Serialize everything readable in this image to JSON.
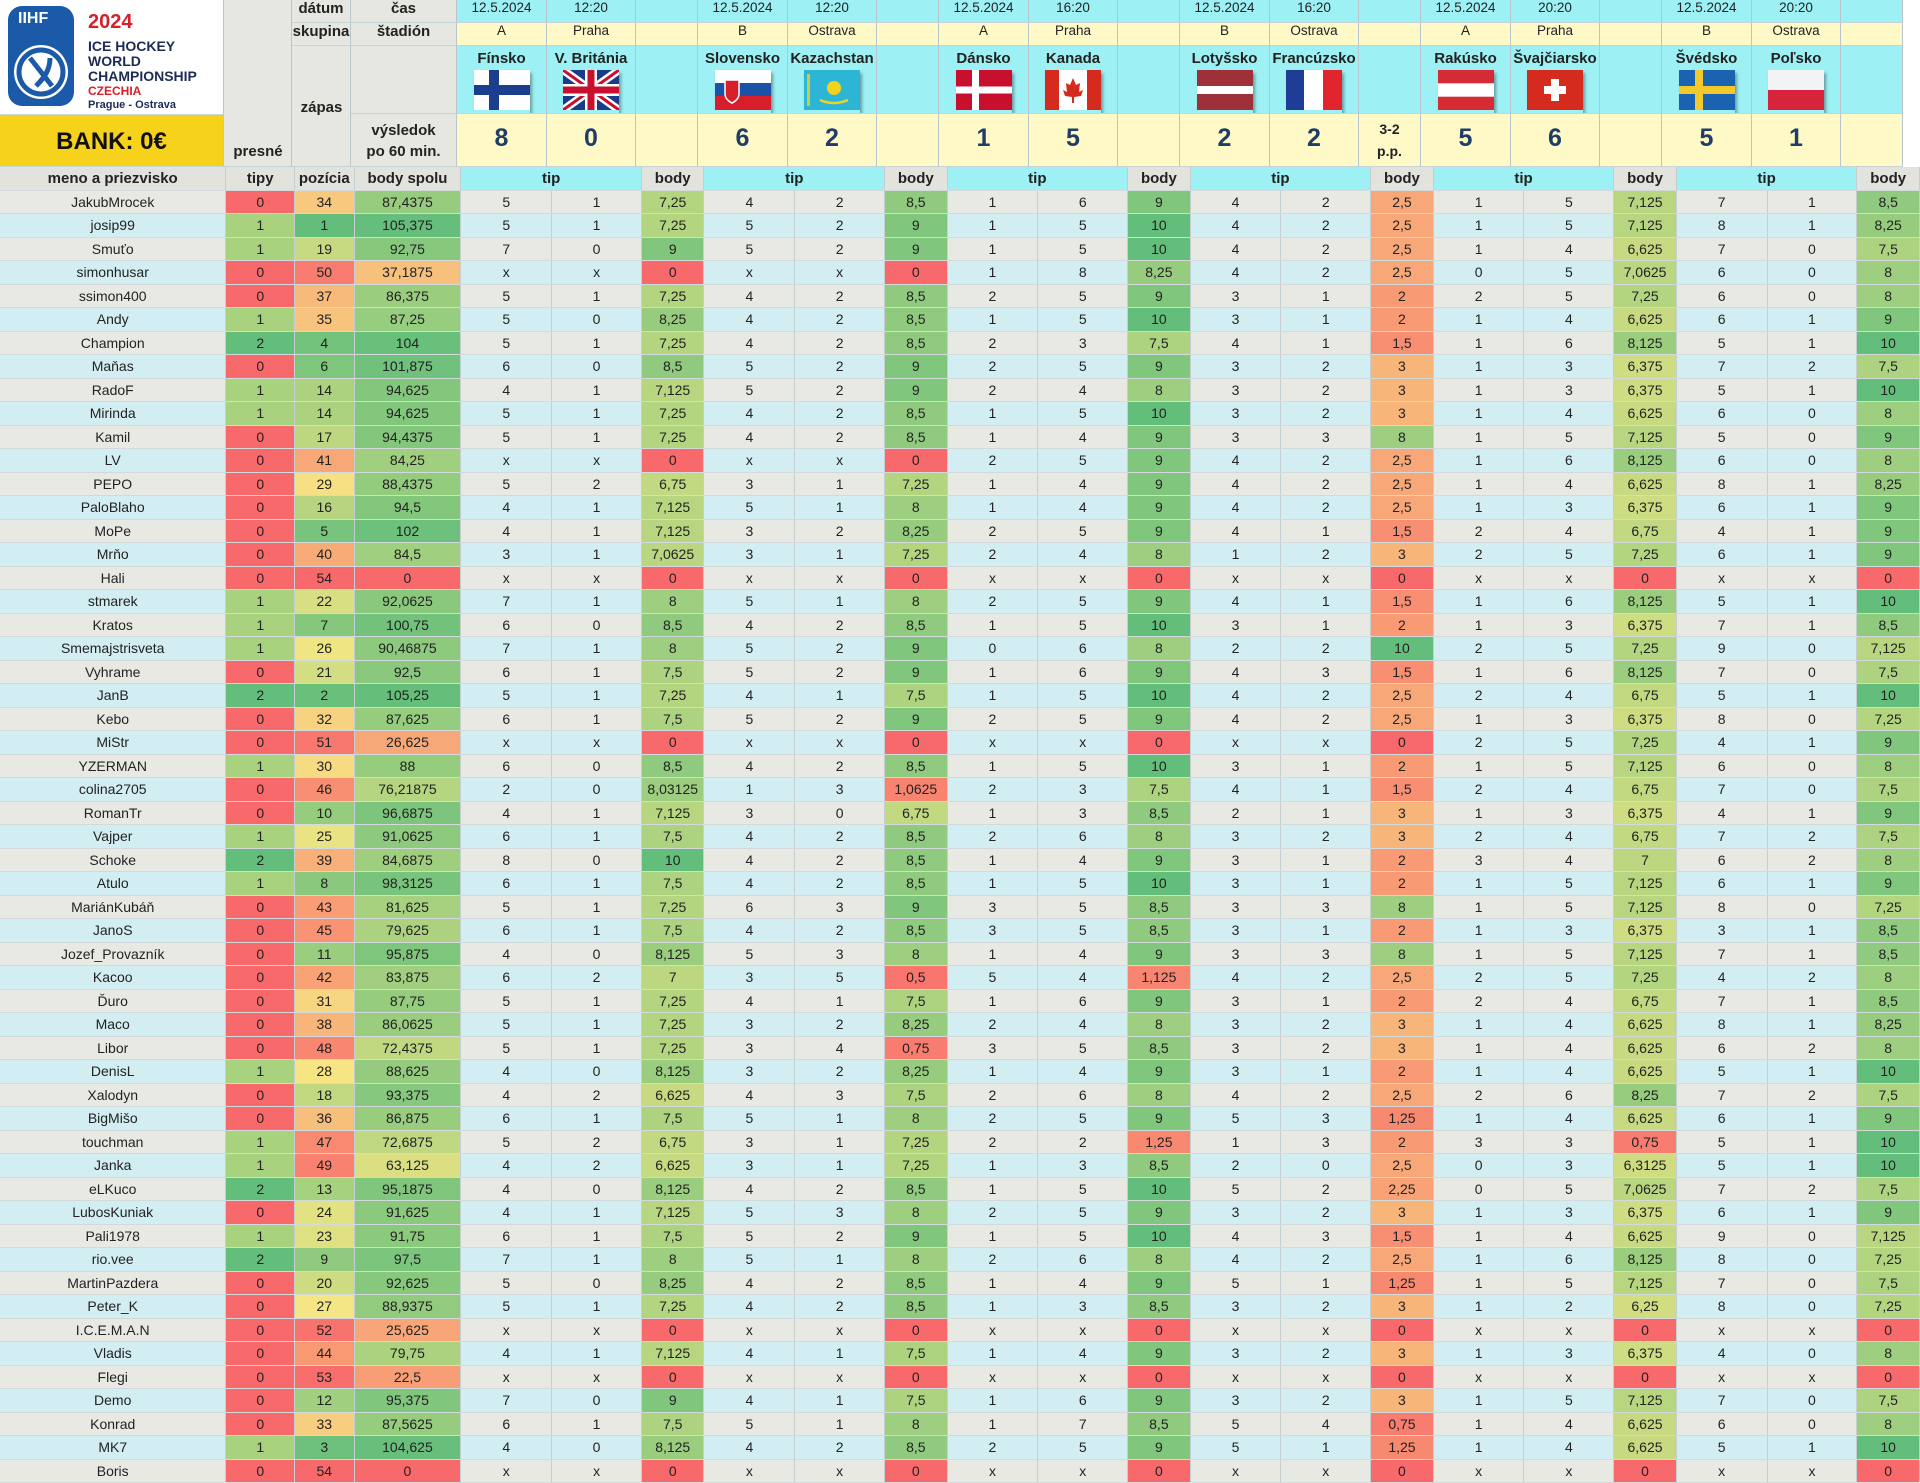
{
  "logo": {
    "brand": "IIHF",
    "year": "2024",
    "line1": "ICE HOCKEY",
    "line2": "WORLD",
    "line3": "CHAMPIONSHIP",
    "country": "CZECHIA",
    "cities": "Prague - Ostrava"
  },
  "bank": "BANK: 0€",
  "labels": {
    "datum": "dátum",
    "cas": "čas",
    "skupina": "skupina",
    "stadion": "štadión",
    "zapas": "zápas",
    "vysledok1": "výsledok",
    "vysledok2": "po 60 min.",
    "presne1": "presné",
    "presne2": "tipy",
    "meno": "meno a priezvisko",
    "pozicia": "pozícia",
    "body_spolu": "body spolu",
    "tip": "tip",
    "body": "body"
  },
  "matches": [
    {
      "date": "12.5.2024",
      "time": "12:20",
      "group": "A",
      "venue": "Praha",
      "home": "Fínsko",
      "away": "V. Británia",
      "score_home": "8",
      "score_away": "0",
      "note": "",
      "home_flag": "finland-flag",
      "away_flag": "great-britain-flag"
    },
    {
      "date": "12.5.2024",
      "time": "12:20",
      "group": "B",
      "venue": "Ostrava",
      "home": "Slovensko",
      "away": "Kazachstan",
      "score_home": "6",
      "score_away": "2",
      "note": "",
      "home_flag": "slovakia-flag",
      "away_flag": "kazakhstan-flag"
    },
    {
      "date": "12.5.2024",
      "time": "16:20",
      "group": "A",
      "venue": "Praha",
      "home": "Dánsko",
      "away": "Kanada",
      "score_home": "1",
      "score_away": "5",
      "note": "",
      "home_flag": "denmark-flag",
      "away_flag": "canada-flag"
    },
    {
      "date": "12.5.2024",
      "time": "16:20",
      "group": "B",
      "venue": "Ostrava",
      "home": "Lotyšsko",
      "away": "Francúzsko",
      "score_home": "2",
      "score_away": "2",
      "note": "3-2 p.p.",
      "home_flag": "latvia-flag",
      "away_flag": "france-flag"
    },
    {
      "date": "12.5.2024",
      "time": "20:20",
      "group": "A",
      "venue": "Praha",
      "home": "Rakúsko",
      "away": "Švajčiarsko",
      "score_home": "5",
      "score_away": "6",
      "note": "",
      "home_flag": "austria-flag",
      "away_flag": "switzerland-flag"
    },
    {
      "date": "12.5.2024",
      "time": "20:20",
      "group": "B",
      "venue": "Ostrava",
      "home": "Švédsko",
      "away": "Poľsko",
      "score_home": "5",
      "score_away": "1",
      "note": "",
      "home_flag": "sweden-flag",
      "away_flag": "poland-flag"
    }
  ],
  "colors": {
    "green": "#63be7b",
    "lgreen": "#a9d27f",
    "yellow": "#f7e784",
    "orange": "#fcb77a",
    "red": "#f8696b",
    "cyan": "#9df0f4",
    "bank": "#f7d21b"
  },
  "rows": [
    [
      "JakubMrocek",
      "0",
      "34",
      "87,4375",
      "5",
      "1",
      "7,25",
      "4",
      "2",
      "8,5",
      "1",
      "6",
      "9",
      "4",
      "2",
      "2,5",
      "1",
      "5",
      "7,125",
      "7",
      "1",
      "8,5"
    ],
    [
      "josip99",
      "1",
      "1",
      "105,375",
      "5",
      "1",
      "7,25",
      "5",
      "2",
      "9",
      "1",
      "5",
      "10",
      "4",
      "2",
      "2,5",
      "1",
      "5",
      "7,125",
      "8",
      "1",
      "8,25"
    ],
    [
      "Smuťo",
      "1",
      "19",
      "92,75",
      "7",
      "0",
      "9",
      "5",
      "2",
      "9",
      "1",
      "5",
      "10",
      "4",
      "2",
      "2,5",
      "1",
      "4",
      "6,625",
      "7",
      "0",
      "7,5"
    ],
    [
      "simonhusar",
      "0",
      "50",
      "37,1875",
      "x",
      "x",
      "0",
      "x",
      "x",
      "0",
      "1",
      "8",
      "8,25",
      "4",
      "2",
      "2,5",
      "0",
      "5",
      "7,0625",
      "6",
      "0",
      "8"
    ],
    [
      "ssimon400",
      "0",
      "37",
      "86,375",
      "5",
      "1",
      "7,25",
      "4",
      "2",
      "8,5",
      "2",
      "5",
      "9",
      "3",
      "1",
      "2",
      "2",
      "5",
      "7,25",
      "6",
      "0",
      "8"
    ],
    [
      "Andy",
      "1",
      "35",
      "87,25",
      "5",
      "0",
      "8,25",
      "4",
      "2",
      "8,5",
      "1",
      "5",
      "10",
      "3",
      "1",
      "2",
      "1",
      "4",
      "6,625",
      "6",
      "1",
      "9"
    ],
    [
      "Champion",
      "2",
      "4",
      "104",
      "5",
      "1",
      "7,25",
      "4",
      "2",
      "8,5",
      "2",
      "3",
      "7,5",
      "4",
      "1",
      "1,5",
      "1",
      "6",
      "8,125",
      "5",
      "1",
      "10"
    ],
    [
      "Maňas",
      "0",
      "6",
      "101,875",
      "6",
      "0",
      "8,5",
      "5",
      "2",
      "9",
      "2",
      "5",
      "9",
      "3",
      "2",
      "3",
      "1",
      "3",
      "6,375",
      "7",
      "2",
      "7,5"
    ],
    [
      "RadoF",
      "1",
      "14",
      "94,625",
      "4",
      "1",
      "7,125",
      "5",
      "2",
      "9",
      "2",
      "4",
      "8",
      "3",
      "2",
      "3",
      "1",
      "3",
      "6,375",
      "5",
      "1",
      "10"
    ],
    [
      "Mirinda",
      "1",
      "14",
      "94,625",
      "5",
      "1",
      "7,25",
      "4",
      "2",
      "8,5",
      "1",
      "5",
      "10",
      "3",
      "2",
      "3",
      "1",
      "4",
      "6,625",
      "6",
      "0",
      "8"
    ],
    [
      "Kamil",
      "0",
      "17",
      "94,4375",
      "5",
      "1",
      "7,25",
      "4",
      "2",
      "8,5",
      "1",
      "4",
      "9",
      "3",
      "3",
      "8",
      "1",
      "5",
      "7,125",
      "5",
      "0",
      "9"
    ],
    [
      "LV",
      "0",
      "41",
      "84,25",
      "x",
      "x",
      "0",
      "x",
      "x",
      "0",
      "2",
      "5",
      "9",
      "4",
      "2",
      "2,5",
      "1",
      "6",
      "8,125",
      "6",
      "0",
      "8"
    ],
    [
      "PEPO",
      "0",
      "29",
      "88,4375",
      "5",
      "2",
      "6,75",
      "3",
      "1",
      "7,25",
      "1",
      "4",
      "9",
      "4",
      "2",
      "2,5",
      "1",
      "4",
      "6,625",
      "8",
      "1",
      "8,25"
    ],
    [
      "PaloBlaho",
      "0",
      "16",
      "94,5",
      "4",
      "1",
      "7,125",
      "5",
      "1",
      "8",
      "1",
      "4",
      "9",
      "4",
      "2",
      "2,5",
      "1",
      "3",
      "6,375",
      "6",
      "1",
      "9"
    ],
    [
      "MoPe",
      "0",
      "5",
      "102",
      "4",
      "1",
      "7,125",
      "3",
      "2",
      "8,25",
      "2",
      "5",
      "9",
      "4",
      "1",
      "1,5",
      "2",
      "4",
      "6,75",
      "4",
      "1",
      "9"
    ],
    [
      "Mrňo",
      "0",
      "40",
      "84,5",
      "3",
      "1",
      "7,0625",
      "3",
      "1",
      "7,25",
      "2",
      "4",
      "8",
      "1",
      "2",
      "3",
      "2",
      "5",
      "7,25",
      "6",
      "1",
      "9"
    ],
    [
      "Hali",
      "0",
      "54",
      "0",
      "x",
      "x",
      "0",
      "x",
      "x",
      "0",
      "x",
      "x",
      "0",
      "x",
      "x",
      "0",
      "x",
      "x",
      "0",
      "x",
      "x",
      "0"
    ],
    [
      "stmarek",
      "1",
      "22",
      "92,0625",
      "7",
      "1",
      "8",
      "5",
      "1",
      "8",
      "2",
      "5",
      "9",
      "4",
      "1",
      "1,5",
      "1",
      "6",
      "8,125",
      "5",
      "1",
      "10"
    ],
    [
      "Kratos",
      "1",
      "7",
      "100,75",
      "6",
      "0",
      "8,5",
      "4",
      "2",
      "8,5",
      "1",
      "5",
      "10",
      "3",
      "1",
      "2",
      "1",
      "3",
      "6,375",
      "7",
      "1",
      "8,5"
    ],
    [
      "Smemajstrisveta",
      "1",
      "26",
      "90,46875",
      "7",
      "1",
      "8",
      "5",
      "2",
      "9",
      "0",
      "6",
      "8",
      "2",
      "2",
      "10",
      "2",
      "5",
      "7,25",
      "9",
      "0",
      "7,125"
    ],
    [
      "Vyhrame",
      "0",
      "21",
      "92,5",
      "6",
      "1",
      "7,5",
      "5",
      "2",
      "9",
      "1",
      "6",
      "9",
      "4",
      "3",
      "1,5",
      "1",
      "6",
      "8,125",
      "7",
      "0",
      "7,5"
    ],
    [
      "JanB",
      "2",
      "2",
      "105,25",
      "5",
      "1",
      "7,25",
      "4",
      "1",
      "7,5",
      "1",
      "5",
      "10",
      "4",
      "2",
      "2,5",
      "2",
      "4",
      "6,75",
      "5",
      "1",
      "10"
    ],
    [
      "Kebo",
      "0",
      "32",
      "87,625",
      "6",
      "1",
      "7,5",
      "5",
      "2",
      "9",
      "2",
      "5",
      "9",
      "4",
      "2",
      "2,5",
      "1",
      "3",
      "6,375",
      "8",
      "0",
      "7,25"
    ],
    [
      "MiStr",
      "0",
      "51",
      "26,625",
      "x",
      "x",
      "0",
      "x",
      "x",
      "0",
      "x",
      "x",
      "0",
      "x",
      "x",
      "0",
      "2",
      "5",
      "7,25",
      "4",
      "1",
      "9"
    ],
    [
      "YZERMAN",
      "1",
      "30",
      "88",
      "6",
      "0",
      "8,5",
      "4",
      "2",
      "8,5",
      "1",
      "5",
      "10",
      "3",
      "1",
      "2",
      "1",
      "5",
      "7,125",
      "6",
      "0",
      "8"
    ],
    [
      "colina2705",
      "0",
      "46",
      "76,21875",
      "2",
      "0",
      "8,03125",
      "1",
      "3",
      "1,0625",
      "2",
      "3",
      "7,5",
      "4",
      "1",
      "1,5",
      "2",
      "4",
      "6,75",
      "7",
      "0",
      "7,5"
    ],
    [
      "RomanTr",
      "0",
      "10",
      "96,6875",
      "4",
      "1",
      "7,125",
      "3",
      "0",
      "6,75",
      "1",
      "3",
      "8,5",
      "2",
      "1",
      "3",
      "1",
      "3",
      "6,375",
      "4",
      "1",
      "9"
    ],
    [
      "Vajper",
      "1",
      "25",
      "91,0625",
      "6",
      "1",
      "7,5",
      "4",
      "2",
      "8,5",
      "2",
      "6",
      "8",
      "3",
      "2",
      "3",
      "2",
      "4",
      "6,75",
      "7",
      "2",
      "7,5"
    ],
    [
      "Schoke",
      "2",
      "39",
      "84,6875",
      "8",
      "0",
      "10",
      "4",
      "2",
      "8,5",
      "1",
      "4",
      "9",
      "3",
      "1",
      "2",
      "3",
      "4",
      "7",
      "6",
      "2",
      "8"
    ],
    [
      "Atulo",
      "1",
      "8",
      "98,3125",
      "6",
      "1",
      "7,5",
      "4",
      "2",
      "8,5",
      "1",
      "5",
      "10",
      "3",
      "1",
      "2",
      "1",
      "5",
      "7,125",
      "6",
      "1",
      "9"
    ],
    [
      "MariánKubáň",
      "0",
      "43",
      "81,625",
      "5",
      "1",
      "7,25",
      "6",
      "3",
      "9",
      "3",
      "5",
      "8,5",
      "3",
      "3",
      "8",
      "1",
      "5",
      "7,125",
      "8",
      "0",
      "7,25"
    ],
    [
      "JanoS",
      "0",
      "45",
      "79,625",
      "6",
      "1",
      "7,5",
      "4",
      "2",
      "8,5",
      "3",
      "5",
      "8,5",
      "3",
      "1",
      "2",
      "1",
      "3",
      "6,375",
      "3",
      "1",
      "8,5"
    ],
    [
      "Jozef_Provazník",
      "0",
      "11",
      "95,875",
      "4",
      "0",
      "8,125",
      "5",
      "3",
      "8",
      "1",
      "4",
      "9",
      "3",
      "3",
      "8",
      "1",
      "5",
      "7,125",
      "7",
      "1",
      "8,5"
    ],
    [
      "Kacoo",
      "0",
      "42",
      "83,875",
      "6",
      "2",
      "7",
      "3",
      "5",
      "0,5",
      "5",
      "4",
      "1,125",
      "4",
      "2",
      "2,5",
      "2",
      "5",
      "7,25",
      "4",
      "2",
      "8"
    ],
    [
      "Ďuro",
      "0",
      "31",
      "87,75",
      "5",
      "1",
      "7,25",
      "4",
      "1",
      "7,5",
      "1",
      "6",
      "9",
      "3",
      "1",
      "2",
      "2",
      "4",
      "6,75",
      "7",
      "1",
      "8,5"
    ],
    [
      "Maco",
      "0",
      "38",
      "86,0625",
      "5",
      "1",
      "7,25",
      "3",
      "2",
      "8,25",
      "2",
      "4",
      "8",
      "3",
      "2",
      "3",
      "1",
      "4",
      "6,625",
      "8",
      "1",
      "8,25"
    ],
    [
      "Libor",
      "0",
      "48",
      "72,4375",
      "5",
      "1",
      "7,25",
      "3",
      "4",
      "0,75",
      "3",
      "5",
      "8,5",
      "3",
      "2",
      "3",
      "1",
      "4",
      "6,625",
      "6",
      "2",
      "8"
    ],
    [
      "DenisL",
      "1",
      "28",
      "88,625",
      "4",
      "0",
      "8,125",
      "3",
      "2",
      "8,25",
      "1",
      "4",
      "9",
      "3",
      "1",
      "2",
      "1",
      "4",
      "6,625",
      "5",
      "1",
      "10"
    ],
    [
      "Xalodyn",
      "0",
      "18",
      "93,375",
      "4",
      "2",
      "6,625",
      "4",
      "3",
      "7,5",
      "2",
      "6",
      "8",
      "4",
      "2",
      "2,5",
      "2",
      "6",
      "8,25",
      "7",
      "2",
      "7,5"
    ],
    [
      "BigMišo",
      "0",
      "36",
      "86,875",
      "6",
      "1",
      "7,5",
      "5",
      "1",
      "8",
      "2",
      "5",
      "9",
      "5",
      "3",
      "1,25",
      "1",
      "4",
      "6,625",
      "6",
      "1",
      "9"
    ],
    [
      "touchman",
      "1",
      "47",
      "72,6875",
      "5",
      "2",
      "6,75",
      "3",
      "1",
      "7,25",
      "2",
      "2",
      "1,25",
      "1",
      "3",
      "2",
      "3",
      "3",
      "0,75",
      "5",
      "1",
      "10"
    ],
    [
      "Janka",
      "1",
      "49",
      "63,125",
      "4",
      "2",
      "6,625",
      "3",
      "1",
      "7,25",
      "1",
      "3",
      "8,5",
      "2",
      "0",
      "2,5",
      "0",
      "3",
      "6,3125",
      "5",
      "1",
      "10"
    ],
    [
      "eLKuco",
      "2",
      "13",
      "95,1875",
      "4",
      "0",
      "8,125",
      "4",
      "2",
      "8,5",
      "1",
      "5",
      "10",
      "5",
      "2",
      "2,25",
      "0",
      "5",
      "7,0625",
      "7",
      "2",
      "7,5"
    ],
    [
      "LubosKuniak",
      "0",
      "24",
      "91,625",
      "4",
      "1",
      "7,125",
      "5",
      "3",
      "8",
      "2",
      "5",
      "9",
      "3",
      "2",
      "3",
      "1",
      "3",
      "6,375",
      "6",
      "1",
      "9"
    ],
    [
      "Pali1978",
      "1",
      "23",
      "91,75",
      "6",
      "1",
      "7,5",
      "5",
      "2",
      "9",
      "1",
      "5",
      "10",
      "4",
      "3",
      "1,5",
      "1",
      "4",
      "6,625",
      "9",
      "0",
      "7,125"
    ],
    [
      "rio.vee",
      "2",
      "9",
      "97,5",
      "7",
      "1",
      "8",
      "5",
      "1",
      "8",
      "2",
      "6",
      "8",
      "4",
      "2",
      "2,5",
      "1",
      "6",
      "8,125",
      "8",
      "0",
      "7,25"
    ],
    [
      "MartinPazdera",
      "0",
      "20",
      "92,625",
      "5",
      "0",
      "8,25",
      "4",
      "2",
      "8,5",
      "1",
      "4",
      "9",
      "5",
      "1",
      "1,25",
      "1",
      "5",
      "7,125",
      "7",
      "0",
      "7,5"
    ],
    [
      "Peter_K",
      "0",
      "27",
      "88,9375",
      "5",
      "1",
      "7,25",
      "4",
      "2",
      "8,5",
      "1",
      "3",
      "8,5",
      "3",
      "2",
      "3",
      "1",
      "2",
      "6,25",
      "8",
      "0",
      "7,25"
    ],
    [
      "I.C.E.M.A.N",
      "0",
      "52",
      "25,625",
      "x",
      "x",
      "0",
      "x",
      "x",
      "0",
      "x",
      "x",
      "0",
      "x",
      "x",
      "0",
      "x",
      "x",
      "0",
      "x",
      "x",
      "0"
    ],
    [
      "Vladis",
      "0",
      "44",
      "79,75",
      "4",
      "1",
      "7,125",
      "4",
      "1",
      "7,5",
      "1",
      "4",
      "9",
      "3",
      "2",
      "3",
      "1",
      "3",
      "6,375",
      "4",
      "0",
      "8"
    ],
    [
      "Flegi",
      "0",
      "53",
      "22,5",
      "x",
      "x",
      "0",
      "x",
      "x",
      "0",
      "x",
      "x",
      "0",
      "x",
      "x",
      "0",
      "x",
      "x",
      "0",
      "x",
      "x",
      "0"
    ],
    [
      "Demo",
      "0",
      "12",
      "95,375",
      "7",
      "0",
      "9",
      "4",
      "1",
      "7,5",
      "1",
      "6",
      "9",
      "3",
      "2",
      "3",
      "1",
      "5",
      "7,125",
      "7",
      "0",
      "7,5"
    ],
    [
      "Konrad",
      "0",
      "33",
      "87,5625",
      "6",
      "1",
      "7,5",
      "5",
      "1",
      "8",
      "1",
      "7",
      "8,5",
      "5",
      "4",
      "0,75",
      "1",
      "4",
      "6,625",
      "6",
      "0",
      "8"
    ],
    [
      "MK7",
      "1",
      "3",
      "104,625",
      "4",
      "0",
      "8,125",
      "4",
      "2",
      "8,5",
      "2",
      "5",
      "9",
      "5",
      "1",
      "1,25",
      "1",
      "4",
      "6,625",
      "5",
      "1",
      "10"
    ],
    [
      "Boris",
      "0",
      "54",
      "0",
      "x",
      "x",
      "0",
      "x",
      "x",
      "0",
      "x",
      "x",
      "0",
      "x",
      "x",
      "0",
      "x",
      "x",
      "0",
      "x",
      "x",
      "0"
    ]
  ]
}
